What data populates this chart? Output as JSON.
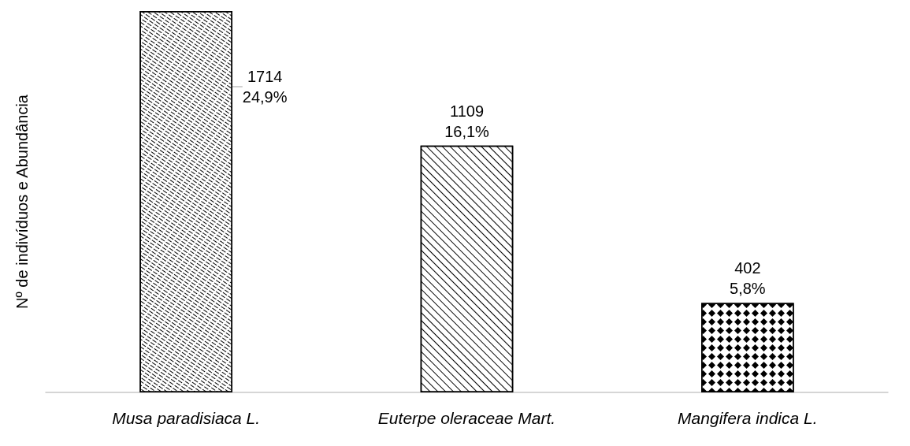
{
  "chart_data": {
    "type": "bar",
    "ylabel": "Nº de indivíduos e Abundância",
    "categories": [
      "Musa paradisiaca L.",
      "Euterpe oleraceae Mart.",
      "Mangifera indica L."
    ],
    "values": [
      1714,
      1109,
      402
    ],
    "value_labels": [
      "1714\n24,9%",
      "1109\n16,1%",
      "402\n5,8%"
    ],
    "color": "#000000",
    "tick_labels": "x",
    "grid": false
  }
}
